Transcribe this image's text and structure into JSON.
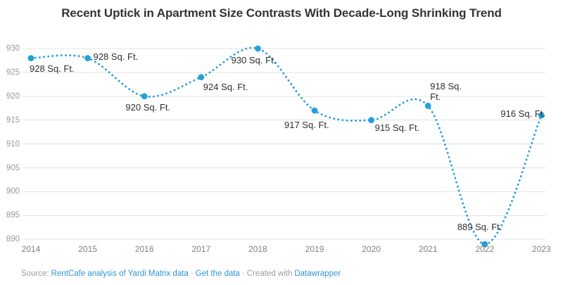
{
  "title": "Recent Uptick in Apartment Size Contrasts With Decade-Long Shrinking Trend",
  "footer": {
    "source_label": "Source:",
    "source_link": "RentCafe analysis of Yardi Matrix data",
    "separator": "·",
    "get_data_link": "Get the data",
    "created_with_label": "Created with",
    "datawrapper_link": "Datawrapper"
  },
  "colors": {
    "line": "#24a0d9",
    "grid": "#e3e3e3",
    "ytick": "#9a9a9a",
    "xtick": "#808080",
    "point_label": "#2e2e2e",
    "title": "#333333",
    "link": "#3095d6",
    "footer_text": "#9b9b9b",
    "background": "#ffffff"
  },
  "chart_data": {
    "type": "line",
    "line_style": "dotted",
    "curve": "smooth",
    "grid": true,
    "title": "Recent Uptick in Apartment Size Contrasts With Decade-Long Shrinking Trend",
    "x": [
      2014,
      2015,
      2016,
      2017,
      2018,
      2019,
      2020,
      2021,
      2022,
      2023
    ],
    "values": [
      928,
      928,
      920,
      924,
      930,
      917,
      915,
      918,
      889,
      916
    ],
    "point_labels": [
      "928 Sq. Ft.",
      "928 Sq. Ft.",
      "920 Sq. Ft.",
      "924 Sq. Ft.",
      "930 Sq. Ft.",
      "917 Sq. Ft.",
      "915 Sq. Ft.",
      "918 Sq. Ft.",
      "889 Sq. Ft.",
      "916 Sq. Ft."
    ],
    "xlabel": "",
    "ylabel": "",
    "ylim": [
      890,
      930
    ],
    "yticks": [
      930,
      925,
      920,
      915,
      910,
      905,
      900,
      895,
      890
    ]
  }
}
